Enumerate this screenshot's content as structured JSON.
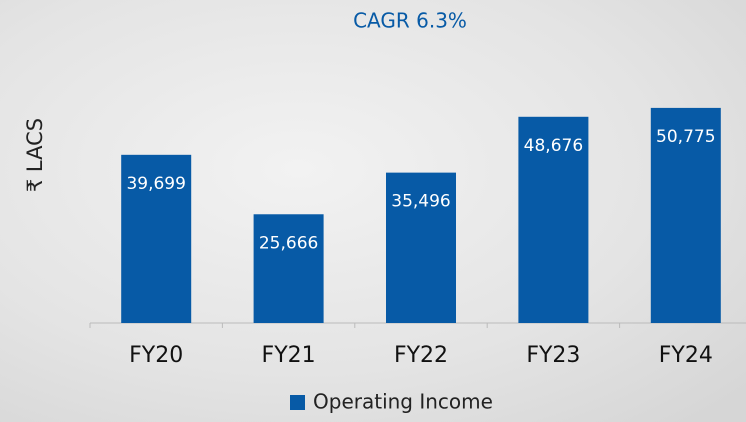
{
  "chart_data": {
    "type": "bar",
    "title": "CAGR 6.3%",
    "y_label": "₹ LACS",
    "categories": [
      "FY20",
      "FY21",
      "FY22",
      "FY23",
      "FY24"
    ],
    "series": [
      {
        "name": "Operating Income",
        "color": "#075aa6",
        "values": [
          39699,
          25666,
          35496,
          48676,
          50775
        ],
        "value_labels": [
          "39,699",
          "25,666",
          "35,496",
          "48,676",
          "50,775"
        ]
      }
    ],
    "ylim": [
      0,
      55000
    ],
    "legend": "bottom"
  }
}
